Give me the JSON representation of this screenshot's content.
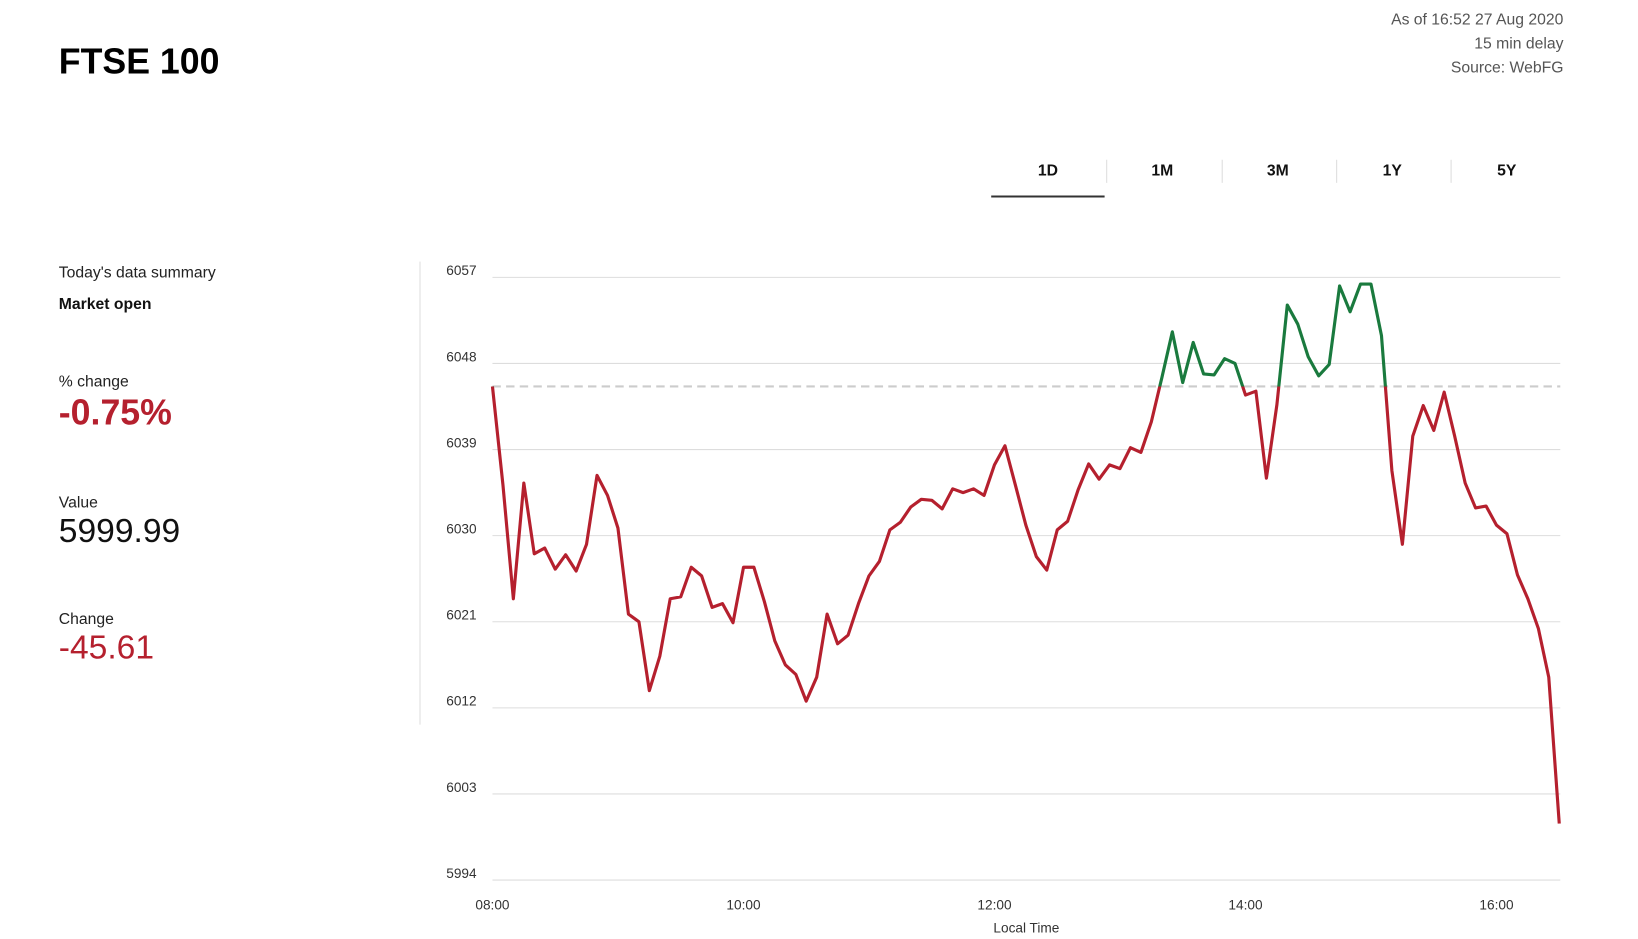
{
  "header": {
    "title": "FTSE 100",
    "timestamp": "As of 16:52 27 Aug 2020",
    "delay": "15 min delay",
    "source": "Source: WebFG"
  },
  "tabs": [
    "1D",
    "1M",
    "3M",
    "1Y",
    "5Y"
  ],
  "active_tab": 0,
  "summary": {
    "heading": "Today's data summary",
    "status": "Market open",
    "items": [
      {
        "label": "% change",
        "value": "-0.75%"
      },
      {
        "label": "Value",
        "value": "5999.99"
      },
      {
        "label": "Change",
        "value": "-45.61"
      }
    ]
  },
  "chart_data": {
    "type": "line",
    "x_label": "Local Time",
    "x": [
      480,
      485,
      490,
      495,
      500,
      505,
      510,
      515,
      520,
      525,
      530,
      535,
      540,
      545,
      550,
      555,
      560,
      565,
      570,
      575,
      580,
      585,
      590,
      595,
      600,
      605,
      610,
      615,
      620,
      625,
      630,
      635,
      640,
      645,
      650,
      655,
      660,
      665,
      670,
      675,
      680,
      685,
      690,
      695,
      700,
      705,
      710,
      715,
      720,
      725,
      730,
      735,
      740,
      745,
      750,
      755,
      760,
      765,
      770,
      775,
      780,
      785,
      790,
      795,
      800,
      805,
      810,
      815,
      820,
      825,
      830,
      835,
      840,
      845,
      850,
      855,
      860,
      865,
      870,
      875,
      880,
      885,
      890,
      895,
      900,
      905,
      910,
      915,
      920,
      925,
      930,
      935,
      940,
      945,
      950,
      955,
      960,
      965,
      970,
      975,
      980,
      985,
      990
    ],
    "values": [
      6045.6,
      6035.3,
      6023.4,
      6035.5,
      6028.1,
      6028.7,
      6026.5,
      6028.0,
      6026.3,
      6029.1,
      6036.3,
      6034.2,
      6030.8,
      6021.8,
      6021.0,
      6013.8,
      6017.4,
      6023.4,
      6023.6,
      6026.7,
      6025.8,
      6022.5,
      6022.9,
      6020.9,
      6026.7,
      6026.7,
      6023.1,
      6019.0,
      6016.5,
      6015.5,
      6012.7,
      6015.2,
      6021.8,
      6018.7,
      6019.6,
      6022.9,
      6025.8,
      6027.3,
      6030.6,
      6031.4,
      6033.0,
      6033.8,
      6033.7,
      6032.8,
      6034.9,
      6034.5,
      6034.9,
      6034.2,
      6037.4,
      6039.4,
      6035.3,
      6031.1,
      6027.8,
      6026.4,
      6030.6,
      6031.5,
      6034.8,
      6037.5,
      6035.9,
      6037.4,
      6037.0,
      6039.2,
      6038.7,
      6041.9,
      6046.5,
      6051.3,
      6046.0,
      6050.2,
      6046.9,
      6046.8,
      6048.5,
      6048.0,
      6044.7,
      6045.1,
      6036.0,
      6043.7,
      6054.1,
      6052.1,
      6048.7,
      6046.7,
      6047.9,
      6056.1,
      6053.4,
      6056.3,
      6056.3,
      6050.9,
      6036.8,
      6029.1,
      6040.4,
      6043.6,
      6041.0,
      6045.0,
      6040.4,
      6035.5,
      6032.9,
      6033.1,
      6031.1,
      6030.2,
      6025.9,
      6023.4,
      6020.3,
      6015.2,
      5999.9
    ],
    "reference": 6045.6,
    "color_up": "#1a7a3e",
    "color_down": "#b5202e",
    "xlim": [
      480,
      990
    ],
    "xticks": [
      {
        "value": 480,
        "label": "08:00"
      },
      {
        "value": 600,
        "label": "10:00"
      },
      {
        "value": 720,
        "label": "12:00"
      },
      {
        "value": 840,
        "label": "14:00"
      },
      {
        "value": 960,
        "label": "16:00"
      }
    ],
    "ylim": [
      5994,
      6057
    ],
    "yticks": [
      5994,
      6003,
      6012,
      6021,
      6030,
      6039,
      6048,
      6057
    ],
    "grid": true
  }
}
